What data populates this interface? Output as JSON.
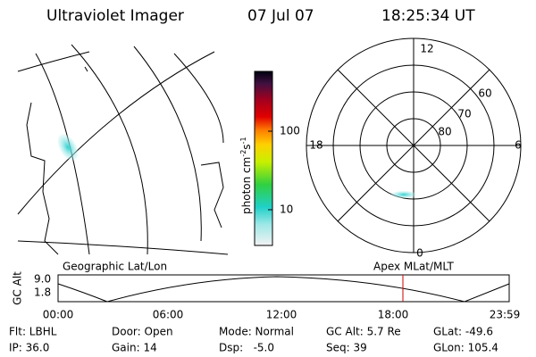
{
  "header": {
    "title": "Ultraviolet Imager",
    "date": "07 Jul 07",
    "time": "18:25:34 UT"
  },
  "colorbar": {
    "label": [
      "photon cm",
      "-2",
      "s",
      "-1"
    ],
    "ticks": [
      "100",
      "10"
    ]
  },
  "polar": {
    "mlt_labels": {
      "top": "12",
      "bottom": "0",
      "left": "18",
      "right": "6"
    },
    "lat_labels": [
      "60",
      "70",
      "80"
    ]
  },
  "altitude": {
    "left_title": "Geographic Lat/Lon",
    "right_title": "Apex MLat/MLT",
    "axis_label": "GC Alt",
    "yticks": [
      "9.0",
      "1.8"
    ],
    "xticks": [
      "00:00",
      "06:00",
      "12:00",
      "18:00",
      "23:59"
    ]
  },
  "footer": {
    "rows": [
      [
        "Flt: LBHL",
        "Door: Open",
        "Mode: Normal",
        "GC Alt: 5.7 Re",
        "GLat: -49.6"
      ],
      [
        "IP: 36.0",
        "Gain: 14",
        "Dsp:   -5.0",
        "Seq: 39",
        "GLon: 105.4"
      ]
    ]
  }
}
